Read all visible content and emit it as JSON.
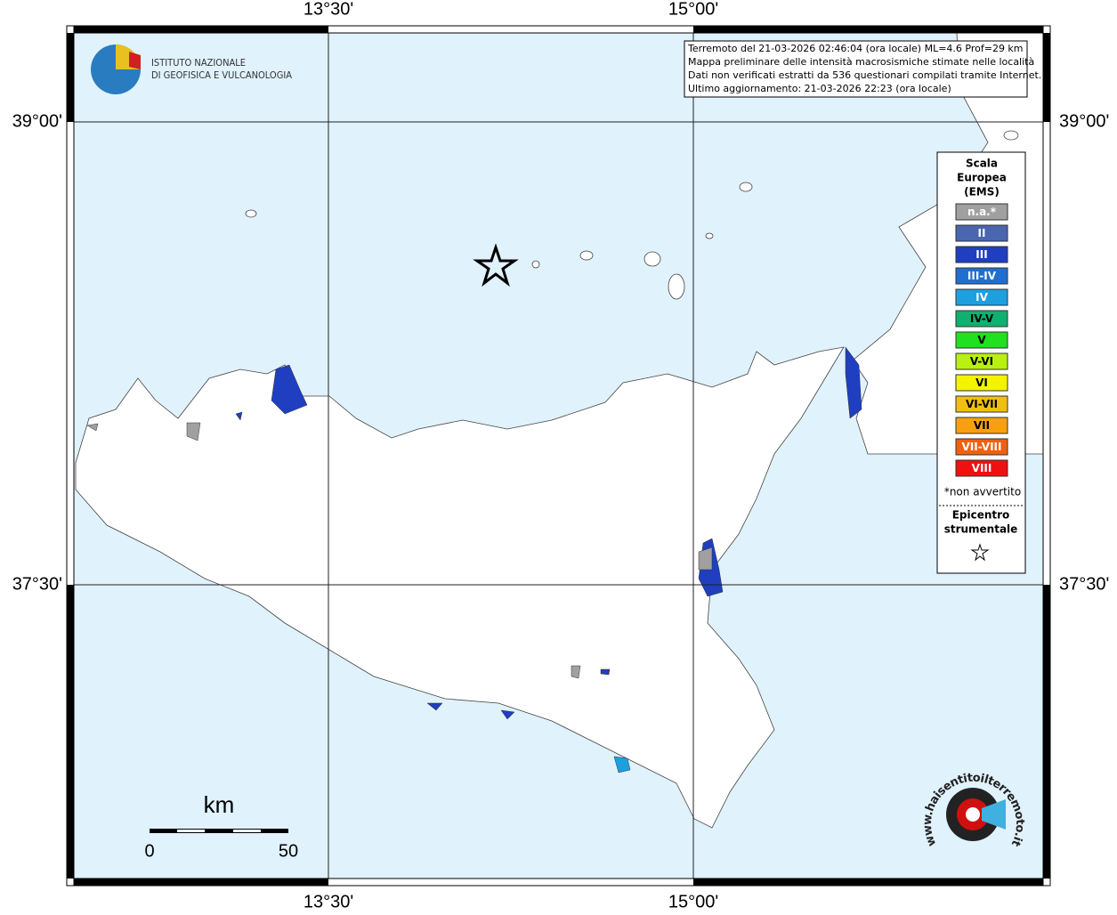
{
  "map": {
    "lon_labels": [
      "13°30'",
      "15°00'"
    ],
    "lat_labels": [
      "39°00'",
      "37°30'"
    ],
    "info": [
      "Terremoto del 21-03-2026 02:46:04 (ora locale) ML=4.6 Prof=29 km",
      "Mappa preliminare delle intensità macrosismiche stimate nelle località",
      "Dati non verificati estratti da 536 questionari compilati tramite Internet.",
      "Ultimo aggiornamento: 21-03-2026 22:23 (ora locale)"
    ],
    "logo": [
      "ISTITUTO NAZIONALE",
      "DI GEOFISICA E VULCANOLOGIA"
    ],
    "legend": {
      "title": [
        "Scala",
        "Europea",
        "(EMS)"
      ],
      "items": [
        {
          "label": "n.a.*",
          "color": "#a0a0a0"
        },
        {
          "label": "II",
          "color": "#4a66b0"
        },
        {
          "label": "III",
          "color": "#1f3fc0"
        },
        {
          "label": "III-IV",
          "color": "#1f6fd0"
        },
        {
          "label": "IV",
          "color": "#1e9fe0"
        },
        {
          "label": "IV-V",
          "color": "#10b070"
        },
        {
          "label": "V",
          "color": "#20e020"
        },
        {
          "label": "V-VI",
          "color": "#b8f010"
        },
        {
          "label": "VI",
          "color": "#f4f400"
        },
        {
          "label": "VI-VII",
          "color": "#f0c010"
        },
        {
          "label": "VII",
          "color": "#f8a010"
        },
        {
          "label": "VII-VIII",
          "color": "#f06010"
        },
        {
          "label": "VIII",
          "color": "#f01010"
        }
      ],
      "note": "*non avvertito",
      "epicentre": [
        "Epicentro",
        "strumentale"
      ]
    },
    "scale": {
      "unit": "km",
      "labels": [
        "0",
        "50"
      ]
    },
    "site": "www.haisentitoilterremoto.it"
  }
}
